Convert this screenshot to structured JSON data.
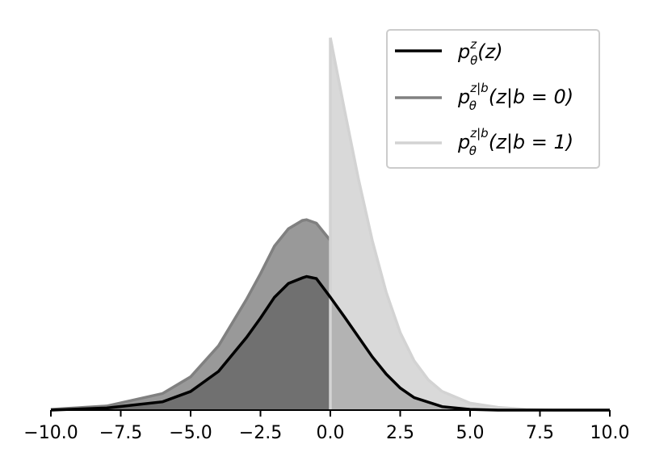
{
  "chart_data": {
    "type": "area",
    "title": "",
    "xlabel": "",
    "ylabel": "",
    "xlim": [
      -10.0,
      10.0
    ],
    "ylim": [
      0,
      0.54
    ],
    "y_axis_visible": false,
    "grid": false,
    "legend_position": "top-right",
    "x_ticks": [
      -10.0,
      -7.5,
      -5.0,
      -2.5,
      0.0,
      2.5,
      5.0,
      7.5,
      10.0
    ],
    "x_tick_labels": [
      "−10.0",
      "−7.5",
      "−5.0",
      "−2.5",
      "0.0",
      "2.5",
      "5.0",
      "7.5",
      "10.0"
    ],
    "legend_entries": [
      {
        "label": "pθz(z)",
        "color": "#000000"
      },
      {
        "label": "pθz|b(z|b = 0)",
        "color": "#808080"
      },
      {
        "label": "pθz|b(z|b = 1)",
        "color": "#d3d3d3"
      }
    ],
    "series": [
      {
        "name": "p_θ^z(z)",
        "color": "#000000",
        "x": [
          -10,
          -8,
          -6,
          -5,
          -4,
          -3,
          -2.5,
          -2,
          -1.5,
          -1.0,
          -0.85,
          -0.5,
          0,
          0.5,
          1,
          1.5,
          2,
          2.5,
          3,
          4,
          5,
          6,
          8,
          10
        ],
        "y": [
          0.0,
          0.003,
          0.012,
          0.027,
          0.056,
          0.105,
          0.133,
          0.163,
          0.183,
          0.191,
          0.193,
          0.19,
          0.163,
          0.135,
          0.106,
          0.077,
          0.052,
          0.032,
          0.018,
          0.005,
          0.001,
          0.0,
          0.0,
          0.0
        ]
      },
      {
        "name": "p_θ^{z|b}(z|b = 0)",
        "color": "#808080",
        "fill": "#999999",
        "x": [
          -10,
          -8,
          -6,
          -5,
          -4,
          -3,
          -2.5,
          -2,
          -1.5,
          -1.0,
          -0.85,
          -0.5,
          0
        ],
        "y": [
          0.001,
          0.006,
          0.024,
          0.048,
          0.093,
          0.16,
          0.197,
          0.237,
          0.262,
          0.274,
          0.275,
          0.27,
          0.245
        ]
      },
      {
        "name": "p_θ^{z|b}(z|b = 1)",
        "color": "#d3d3d3",
        "fill": "#d9d9d9",
        "x": [
          0,
          0.5,
          1,
          1.5,
          2,
          2.5,
          3,
          3.5,
          4,
          5,
          6,
          7,
          8,
          10
        ],
        "y": [
          0.538,
          0.435,
          0.335,
          0.245,
          0.17,
          0.112,
          0.071,
          0.044,
          0.027,
          0.01,
          0.004,
          0.001,
          0.0,
          0.0
        ]
      }
    ]
  }
}
